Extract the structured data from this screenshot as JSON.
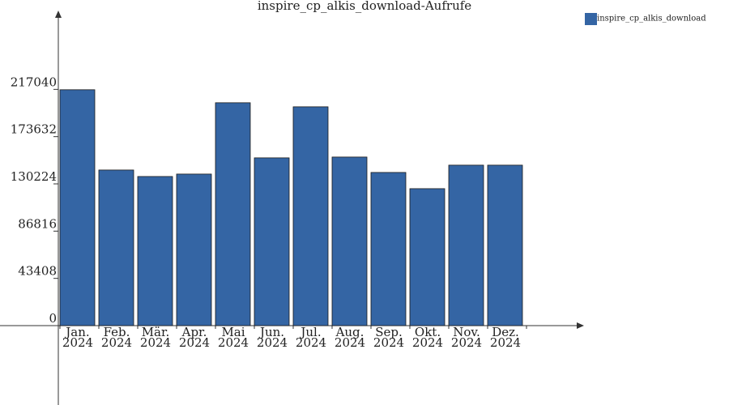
{
  "chart_data": {
    "type": "bar",
    "title": "inspire_cp_alkis_download-Aufrufe",
    "categories": [
      [
        "Jan.",
        "2024"
      ],
      [
        "Feb.",
        "2024"
      ],
      [
        "Mär.",
        "2024"
      ],
      [
        "Apr.",
        "2024"
      ],
      [
        "Mai",
        "2024"
      ],
      [
        "Jun.",
        "2024"
      ],
      [
        "Jul.",
        "2024"
      ],
      [
        "Aug.",
        "2024"
      ],
      [
        "Sep.",
        "2024"
      ],
      [
        "Okt.",
        "2024"
      ],
      [
        "Nov.",
        "2024"
      ],
      [
        "Dez.",
        "2024"
      ]
    ],
    "series": [
      {
        "name": "inspire_cp_alkis_download",
        "color": "#3465a4",
        "values": [
          216700,
          142950,
          137000,
          139230,
          204760,
          154130,
          201030,
          154870,
          140720,
          125830,
          147420,
          147420
        ]
      }
    ],
    "ylim": [
      0,
      288000
    ],
    "yticks": [
      0,
      43408,
      86816,
      130224,
      173632,
      217040
    ]
  }
}
